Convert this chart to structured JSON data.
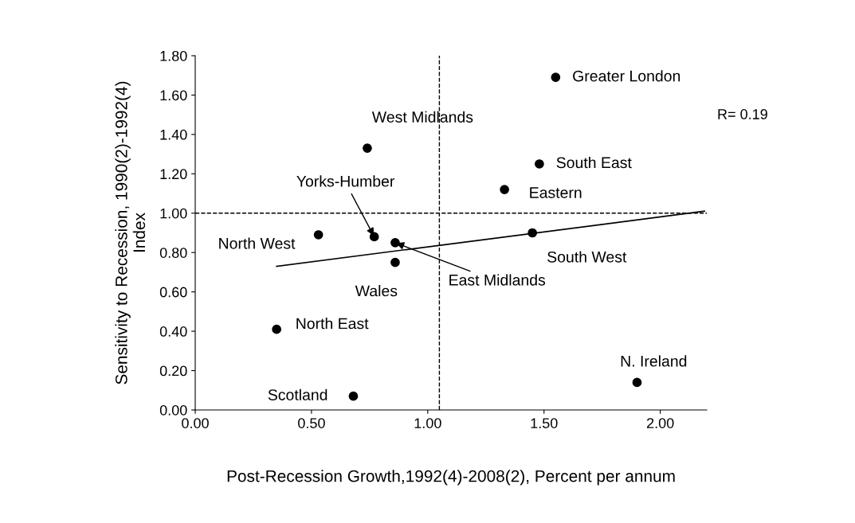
{
  "chart_data": {
    "type": "scatter",
    "xlabel": "Post-Recession Growth,1992(4)-2008(2), Percent per annum",
    "ylabel": "Sensitivity to Recession, 1990(2)-1992(4)\nIndex",
    "series": [
      {
        "color": "#000000",
        "marker": "circle",
        "x": [
          1.55,
          0.74,
          1.48,
          1.33,
          1.45,
          0.53,
          0.77,
          0.86,
          0.86,
          0.35,
          0.68,
          1.9
        ],
        "values": [
          1.69,
          1.33,
          1.25,
          1.12,
          0.9,
          0.89,
          0.88,
          0.85,
          0.75,
          0.41,
          0.07,
          0.14
        ]
      },
      {
        "type": "line",
        "color": "#000000",
        "marker": "none",
        "line_style": "solid",
        "x": [
          0.35,
          2.19
        ],
        "values": [
          0.73,
          1.01
        ]
      }
    ],
    "annotations": [
      {
        "text": "Greater London",
        "x": 1.55,
        "y": 1.69
      },
      {
        "text": "West Midlands",
        "x": 0.74,
        "y": 1.33
      },
      {
        "text": "South East",
        "x": 1.48,
        "y": 1.25
      },
      {
        "text": "Eastern",
        "x": 1.33,
        "y": 1.12
      },
      {
        "text": "South West",
        "x": 1.45,
        "y": 0.9
      },
      {
        "text": "North West",
        "x": 0.53,
        "y": 0.89
      },
      {
        "text": "Yorks-Humber",
        "x": 0.77,
        "y": 0.88
      },
      {
        "text": "East Midlands",
        "x": 0.86,
        "y": 0.85
      },
      {
        "text": "Wales",
        "x": 0.86,
        "y": 0.75
      },
      {
        "text": "North East",
        "x": 0.35,
        "y": 0.41
      },
      {
        "text": "Scotland",
        "x": 0.68,
        "y": 0.07
      },
      {
        "text": "N. Ireland",
        "x": 1.9,
        "y": 0.14
      },
      "R= 0.19"
    ],
    "ref_lines": [
      {
        "axis": "x",
        "value": 1.05,
        "color": "#000000",
        "line_style": "dashed"
      },
      {
        "axis": "y",
        "value": 1.0,
        "color": "#000000",
        "line_style": "dashed"
      }
    ],
    "xlim": [
      0,
      2.2
    ],
    "xticks": [
      {
        "value": 0,
        "label": "0.00"
      },
      {
        "value": 0.5,
        "label": "0.50"
      },
      {
        "value": 1,
        "label": "1.00"
      },
      {
        "value": 1.5,
        "label": "1.50"
      },
      {
        "value": 2,
        "label": "2.00"
      }
    ],
    "ylim": [
      0,
      1.8
    ],
    "yticks": [
      {
        "value": 0,
        "label": "0.00"
      },
      {
        "value": 0.2,
        "label": "0.20"
      },
      {
        "value": 0.4,
        "label": "0.40"
      },
      {
        "value": 0.6,
        "label": "0.60"
      },
      {
        "value": 0.8,
        "label": "0.80"
      },
      {
        "value": 1.0,
        "label": "1.00"
      },
      {
        "value": 1.2,
        "label": "1.20"
      },
      {
        "value": 1.4,
        "label": "1.40"
      },
      {
        "value": 1.6,
        "label": "1.60"
      },
      {
        "value": 1.8,
        "label": "1.80"
      }
    ],
    "grid": false,
    "legend": false
  }
}
